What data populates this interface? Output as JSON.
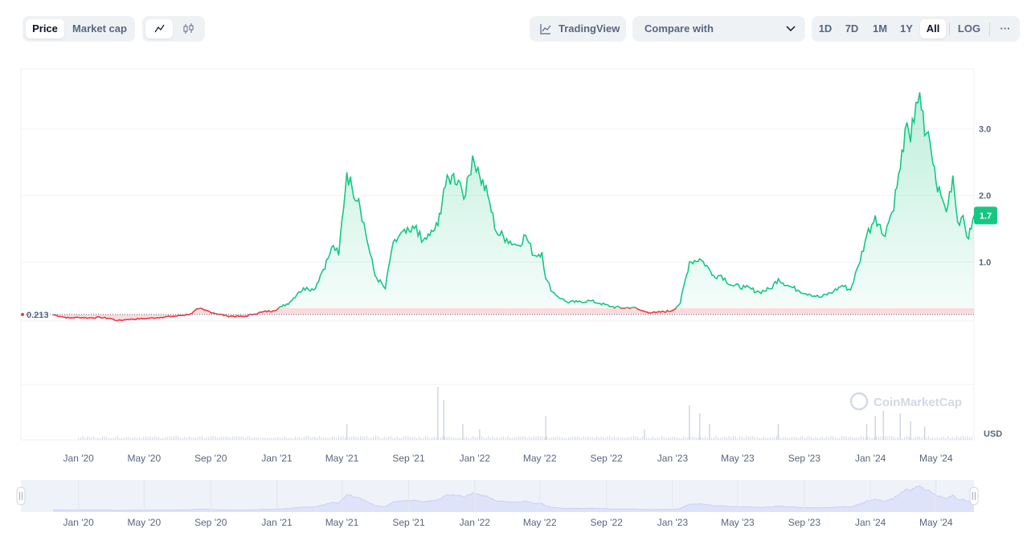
{
  "toolbar": {
    "price_tab": "Price",
    "marketcap_tab": "Market cap",
    "line_icon": "line-chart-icon",
    "candle_icon": "candlestick-icon",
    "tradingview_label": "TradingView",
    "tradingview_icon": "chart-icon",
    "compare_label": "Compare with",
    "compare_icon": "chevron-down-icon",
    "ranges": [
      "1D",
      "7D",
      "1M",
      "1Y",
      "All"
    ],
    "active_range": "All",
    "log_label": "LOG",
    "more_label": "···"
  },
  "chart_data": {
    "type": "area",
    "currency_label": "USD",
    "watermark": "CoinMarketCap",
    "baseline": 0.213,
    "baseline_label": "0.213",
    "current_value": 1.7,
    "current_label": "1.7",
    "ylim": [
      -0.85,
      3.9
    ],
    "yticks": [
      1.0,
      2.0,
      3.0
    ],
    "ytick_labels": [
      "1.0",
      "2.0",
      "3.0"
    ],
    "xticks": [
      "Jan '20",
      "May '20",
      "Sep '20",
      "Jan '21",
      "May '21",
      "Sep '21",
      "Jan '22",
      "May '22",
      "Sep '22",
      "Jan '23",
      "May '23",
      "Sep '23",
      "Jan '24",
      "May '24"
    ],
    "series": [
      {
        "x": [
          "2019-11-15",
          "2019-12-01",
          "2019-12-15",
          "2020-01-01",
          "2020-01-20",
          "2020-02-10",
          "2020-03-01",
          "2020-03-13",
          "2020-04-01",
          "2020-05-01",
          "2020-06-01",
          "2020-07-01",
          "2020-07-25",
          "2020-08-10",
          "2020-08-20",
          "2020-09-05",
          "2020-10-01",
          "2020-11-01",
          "2020-11-20",
          "2020-12-05",
          "2020-12-25",
          "2021-01-10",
          "2021-01-25",
          "2021-02-10",
          "2021-02-25",
          "2021-03-10",
          "2021-03-25",
          "2021-04-05",
          "2021-04-15",
          "2021-04-25",
          "2021-05-10",
          "2021-05-20",
          "2021-06-01",
          "2021-06-20",
          "2021-07-01",
          "2021-07-20",
          "2021-08-01",
          "2021-08-15",
          "2021-09-05",
          "2021-09-15",
          "2021-09-25",
          "2021-10-10",
          "2021-10-25",
          "2021-11-05",
          "2021-11-20",
          "2021-12-05",
          "2021-12-15",
          "2021-12-28",
          "2022-01-10",
          "2022-01-25",
          "2022-02-10",
          "2022-03-01",
          "2022-03-20",
          "2022-04-05",
          "2022-04-20",
          "2022-05-05",
          "2022-05-12",
          "2022-05-25",
          "2022-06-10",
          "2022-06-20",
          "2022-07-10",
          "2022-08-01",
          "2022-08-20",
          "2022-09-10",
          "2022-10-01",
          "2022-10-20",
          "2022-11-05",
          "2022-11-15",
          "2022-12-01",
          "2022-12-31",
          "2023-01-15",
          "2023-02-01",
          "2023-02-20",
          "2023-03-05",
          "2023-03-15",
          "2023-04-01",
          "2023-04-20",
          "2023-05-15",
          "2023-06-10",
          "2023-07-01",
          "2023-07-15",
          "2023-08-01",
          "2023-08-20",
          "2023-09-10",
          "2023-10-01",
          "2023-10-25",
          "2023-11-10",
          "2023-11-25",
          "2023-12-10",
          "2023-12-25",
          "2024-01-10",
          "2024-01-25",
          "2024-02-10",
          "2024-02-25",
          "2024-03-05",
          "2024-03-15",
          "2024-03-25",
          "2024-04-01",
          "2024-04-10",
          "2024-04-20",
          "2024-05-01",
          "2024-05-10",
          "2024-05-20",
          "2024-06-01",
          "2024-06-10",
          "2024-06-20",
          "2024-06-30",
          "2024-07-05",
          "2024-07-10"
        ],
        "values": [
          0.21,
          0.18,
          0.16,
          0.17,
          0.16,
          0.17,
          0.15,
          0.12,
          0.14,
          0.15,
          0.17,
          0.19,
          0.22,
          0.3,
          0.28,
          0.24,
          0.19,
          0.18,
          0.22,
          0.25,
          0.27,
          0.33,
          0.4,
          0.55,
          0.62,
          0.58,
          0.85,
          1.05,
          1.25,
          1.1,
          2.35,
          2.1,
          1.95,
          1.2,
          0.8,
          0.6,
          1.2,
          1.4,
          1.45,
          1.55,
          1.3,
          1.4,
          1.55,
          2.1,
          2.3,
          2.2,
          2.0,
          2.6,
          2.3,
          2.0,
          1.45,
          1.35,
          1.25,
          1.4,
          1.1,
          1.15,
          0.75,
          0.55,
          0.45,
          0.4,
          0.4,
          0.42,
          0.38,
          0.33,
          0.31,
          0.32,
          0.27,
          0.25,
          0.24,
          0.27,
          0.38,
          1.0,
          1.05,
          0.95,
          0.8,
          0.8,
          0.65,
          0.62,
          0.55,
          0.6,
          0.75,
          0.65,
          0.58,
          0.52,
          0.47,
          0.56,
          0.65,
          0.58,
          0.95,
          1.4,
          1.7,
          1.4,
          1.75,
          2.4,
          3.0,
          2.8,
          3.4,
          3.55,
          2.9,
          2.8,
          2.2,
          2.0,
          1.75,
          2.3,
          1.6,
          1.7,
          1.35,
          1.5,
          1.7
        ]
      }
    ],
    "volume_peaks": [
      {
        "x": "2021-05-10",
        "v": 0.3
      },
      {
        "x": "2021-10-25",
        "v": 1.0
      },
      {
        "x": "2021-11-05",
        "v": 0.75
      },
      {
        "x": "2021-12-10",
        "v": 0.3
      },
      {
        "x": "2022-01-10",
        "v": 0.2
      },
      {
        "x": "2022-05-12",
        "v": 0.45
      },
      {
        "x": "2022-11-10",
        "v": 0.2
      },
      {
        "x": "2023-02-01",
        "v": 0.65
      },
      {
        "x": "2023-02-20",
        "v": 0.5
      },
      {
        "x": "2023-03-10",
        "v": 0.3
      },
      {
        "x": "2023-07-15",
        "v": 0.3
      },
      {
        "x": "2023-12-25",
        "v": 0.3
      },
      {
        "x": "2024-01-10",
        "v": 0.45
      },
      {
        "x": "2024-01-25",
        "v": 0.55
      },
      {
        "x": "2024-02-25",
        "v": 0.5
      },
      {
        "x": "2024-03-15",
        "v": 0.35
      },
      {
        "x": "2024-04-10",
        "v": 0.25
      }
    ],
    "grid": true,
    "colors": {
      "up": "#16c784",
      "down": "#ea3943",
      "area_top": "#16c784",
      "badge": "#16c784",
      "grid": "#eff2f5",
      "navigator_fill": "#dee3fa",
      "volume": "#cfd6e4"
    }
  }
}
